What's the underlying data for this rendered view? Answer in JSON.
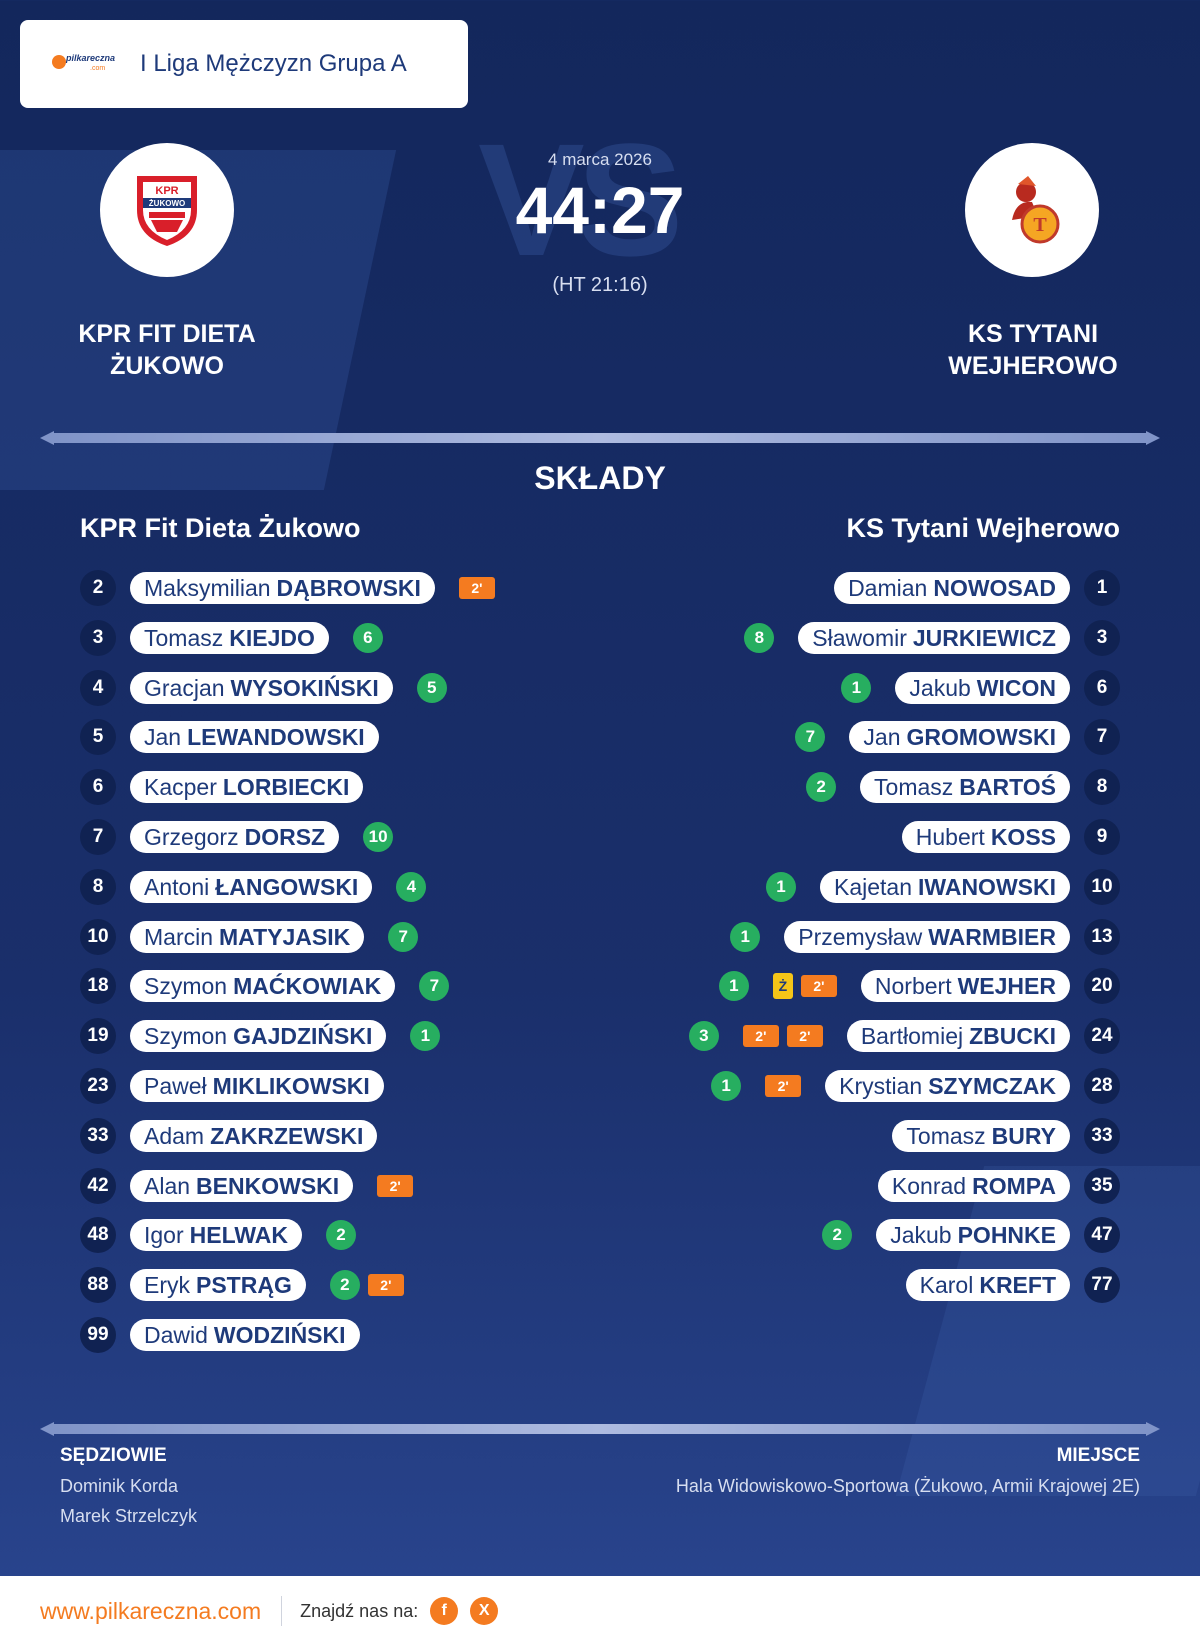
{
  "header": {
    "league": "I Liga Mężczyzn Grupa A",
    "logo_text": "pilkareczna",
    "logo_sub": ".com"
  },
  "match": {
    "date": "4 marca 2026",
    "score": "44:27",
    "halftime": "(HT 21:16)",
    "vs_text": "VS"
  },
  "home": {
    "name": "KPR FIT DIETA\nŻUKOWO",
    "name_line1": "KPR FIT DIETA",
    "name_line2": "ŻUKOWO",
    "crest_text": "KPR ŻUKOWO",
    "roster_title": "KPR Fit Dieta Żukowo"
  },
  "away": {
    "name_line1": "KS TYTANI",
    "name_line2": "WEJHEROWO",
    "crest_text": "T",
    "roster_title": "KS Tytani Wejherowo"
  },
  "section_title": "SKŁADY",
  "home_players": [
    {
      "num": "2",
      "first": "Maksymilian",
      "last": "DĄBROWSKI",
      "goals": "",
      "pens": [
        "2'"
      ]
    },
    {
      "num": "3",
      "first": "Tomasz",
      "last": "KIEJDO",
      "goals": "6",
      "pens": []
    },
    {
      "num": "4",
      "first": "Gracjan",
      "last": "WYSOKIŃSKI",
      "goals": "5",
      "pens": []
    },
    {
      "num": "5",
      "first": "Jan",
      "last": "LEWANDOWSKI",
      "goals": "",
      "pens": []
    },
    {
      "num": "6",
      "first": "Kacper",
      "last": "LORBIECKI",
      "goals": "",
      "pens": []
    },
    {
      "num": "7",
      "first": "Grzegorz",
      "last": "DORSZ",
      "goals": "10",
      "pens": []
    },
    {
      "num": "8",
      "first": "Antoni",
      "last": "ŁANGOWSKI",
      "goals": "4",
      "pens": []
    },
    {
      "num": "10",
      "first": "Marcin",
      "last": "MATYJASIK",
      "goals": "7",
      "pens": []
    },
    {
      "num": "18",
      "first": "Szymon",
      "last": "MAĆKOWIAK",
      "goals": "7",
      "pens": []
    },
    {
      "num": "19",
      "first": "Szymon",
      "last": "GAJDZIŃSKI",
      "goals": "1",
      "pens": []
    },
    {
      "num": "23",
      "first": "Paweł",
      "last": "MIKLIKOWSKI",
      "goals": "",
      "pens": []
    },
    {
      "num": "33",
      "first": "Adam",
      "last": "ZAKRZEWSKI",
      "goals": "",
      "pens": []
    },
    {
      "num": "42",
      "first": "Alan",
      "last": "BENKOWSKI",
      "goals": "",
      "pens": [
        "2'"
      ]
    },
    {
      "num": "48",
      "first": "Igor",
      "last": "HELWAK",
      "goals": "2",
      "pens": []
    },
    {
      "num": "88",
      "first": "Eryk",
      "last": "PSTRĄG",
      "goals": "2",
      "pens": [
        "2'"
      ]
    },
    {
      "num": "99",
      "first": "Dawid",
      "last": "WODZIŃSKI",
      "goals": "",
      "pens": []
    }
  ],
  "away_players": [
    {
      "num": "1",
      "first": "Damian",
      "last": "NOWOSAD",
      "goals": "",
      "pens": [],
      "yellow": ""
    },
    {
      "num": "3",
      "first": "Sławomir",
      "last": "JURKIEWICZ",
      "goals": "8",
      "pens": [],
      "yellow": ""
    },
    {
      "num": "6",
      "first": "Jakub",
      "last": "WICON",
      "goals": "1",
      "pens": [],
      "yellow": ""
    },
    {
      "num": "7",
      "first": "Jan",
      "last": "GROMOWSKI",
      "goals": "7",
      "pens": [],
      "yellow": ""
    },
    {
      "num": "8",
      "first": "Tomasz",
      "last": "BARTOŚ",
      "goals": "2",
      "pens": [],
      "yellow": ""
    },
    {
      "num": "9",
      "first": "Hubert",
      "last": "KOSS",
      "goals": "",
      "pens": [],
      "yellow": ""
    },
    {
      "num": "10",
      "first": "Kajetan",
      "last": "IWANOWSKI",
      "goals": "1",
      "pens": [],
      "yellow": ""
    },
    {
      "num": "13",
      "first": "Przemysław",
      "last": "WARMBIER",
      "goals": "1",
      "pens": [],
      "yellow": ""
    },
    {
      "num": "20",
      "first": "Norbert",
      "last": "WEJHER",
      "goals": "1",
      "pens": [
        "2'"
      ],
      "yellow": "Ż"
    },
    {
      "num": "24",
      "first": "Bartłomiej",
      "last": "ZBUCKI",
      "goals": "3",
      "pens": [
        "2'",
        "2'"
      ],
      "yellow": ""
    },
    {
      "num": "28",
      "first": "Krystian",
      "last": "SZYMCZAK",
      "goals": "1",
      "pens": [
        "2'"
      ],
      "yellow": ""
    },
    {
      "num": "33",
      "first": "Tomasz",
      "last": "BURY",
      "goals": "",
      "pens": [],
      "yellow": ""
    },
    {
      "num": "35",
      "first": "Konrad",
      "last": "ROMPA",
      "goals": "",
      "pens": [],
      "yellow": ""
    },
    {
      "num": "47",
      "first": "Jakub",
      "last": "POHNKE",
      "goals": "2",
      "pens": [],
      "yellow": ""
    },
    {
      "num": "77",
      "first": "Karol",
      "last": "KREFT",
      "goals": "",
      "pens": [],
      "yellow": ""
    }
  ],
  "officials": {
    "title": "SĘDZIOWIE",
    "names": [
      "Dominik Korda",
      "Marek Strzelczyk"
    ]
  },
  "venue": {
    "title": "MIEJSCE",
    "name": "Hala Widowiskowo-Sportowa (Żukowo, Armii Krajowej 2E)"
  },
  "footer": {
    "site": "www.pilkareczna.com",
    "find_us": "Znajdź nas na:",
    "socials": [
      "f",
      "X"
    ]
  },
  "colors": {
    "background": "#1a2f6b",
    "accent": "#f47b20",
    "goal": "#27ae60",
    "yellow": "#f5c518"
  }
}
